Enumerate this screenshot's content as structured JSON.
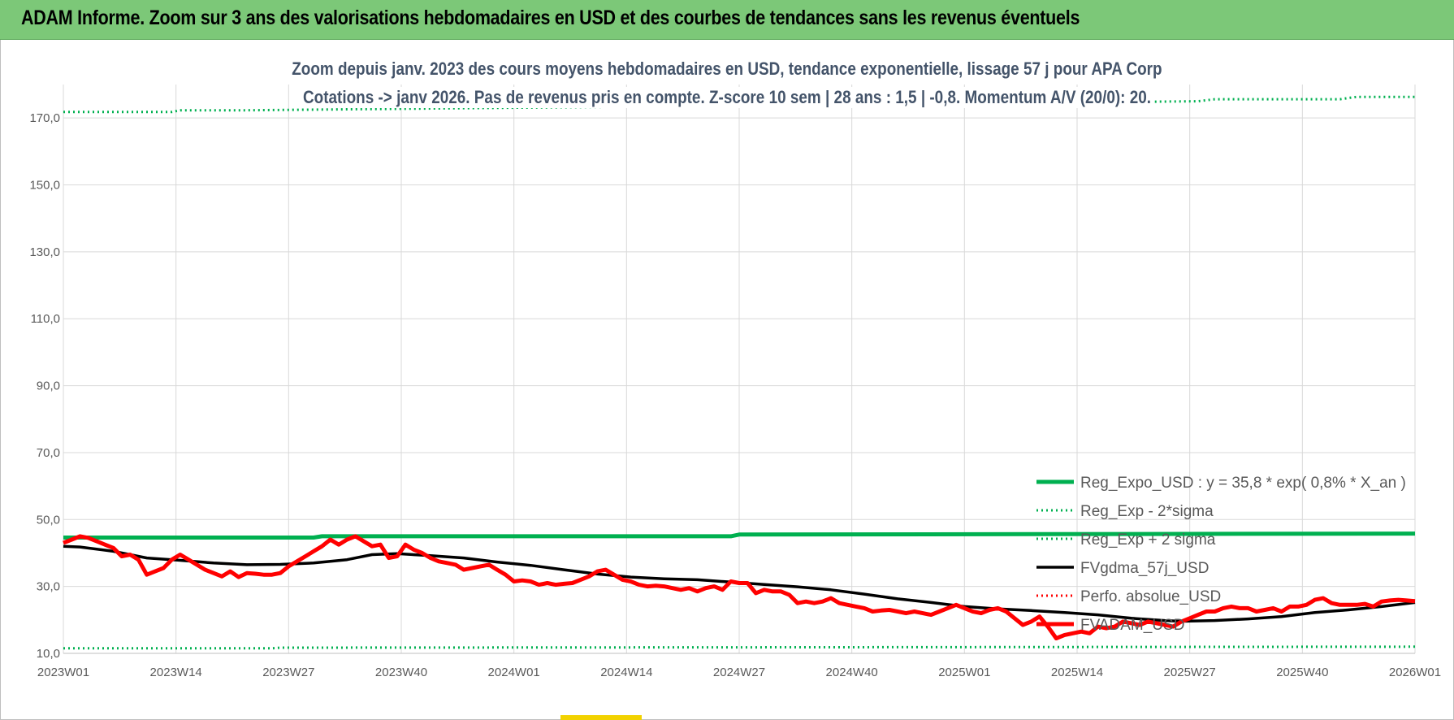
{
  "banner": {
    "title": "ADAM Informe. Zoom sur 3 ans des valorisations hebdomadaires en USD et des courbes de tendances sans les revenus éventuels"
  },
  "chart_data": {
    "type": "line",
    "title": "Zoom depuis janv. 2023 des cours moyens hebdomadaires en USD, tendance exponentielle, lissage 57 j pour APA Corp",
    "subtitle": "Cotations -> janv 2026. Pas de revenus pris en compte. Z-score 10 sem | 28 ans : 1,5 | -0,8. Momentum A/V (20/0): 20.",
    "ylim": [
      10,
      180
    ],
    "y_ticks": [
      "10,0",
      "30,0",
      "50,0",
      "70,0",
      "90,0",
      "110,0",
      "130,0",
      "150,0",
      "170,0"
    ],
    "x_ticks": [
      "2023W01",
      "2023W14",
      "2023W27",
      "2023W40",
      "2024W01",
      "2024W14",
      "2024W27",
      "2024W40",
      "2025W01",
      "2025W14",
      "2025W27",
      "2025W40",
      "2026W01"
    ],
    "grid": true,
    "legend_position": "right",
    "series": [
      {
        "name": "Reg_Expo_USD : y = 35,8 * exp( 0,8% *  X_an )",
        "color": "#00b050",
        "style": "solid-thick",
        "points": [
          [
            0,
            44.6
          ],
          [
            30,
            44.6
          ],
          [
            31,
            45.0
          ],
          [
            80,
            45.0
          ],
          [
            81,
            45.5
          ],
          [
            162,
            45.8
          ]
        ]
      },
      {
        "name": "Reg_Exp - 2*sigma",
        "color": "#00b050",
        "style": "dotted",
        "points": [
          [
            0,
            11.5
          ],
          [
            25,
            11.5
          ],
          [
            26,
            11.7
          ],
          [
            80,
            11.8
          ],
          [
            162,
            12.0
          ]
        ]
      },
      {
        "name": "Reg_Exp + 2 sigma",
        "color": "#00b050",
        "style": "dotted",
        "points": [
          [
            0,
            171.8
          ],
          [
            13,
            171.8
          ],
          [
            14,
            172.3
          ],
          [
            22,
            172.3
          ],
          [
            136,
            175.0
          ],
          [
            138,
            175.6
          ],
          [
            153,
            175.6
          ],
          [
            155,
            176.3
          ],
          [
            162,
            176.3
          ]
        ]
      },
      {
        "name": "FVgdma_57j_USD",
        "color": "#000000",
        "style": "solid",
        "points": [
          [
            0,
            42.0
          ],
          [
            2,
            41.8
          ],
          [
            6,
            40.5
          ],
          [
            10,
            38.5
          ],
          [
            14,
            37.8
          ],
          [
            18,
            37.0
          ],
          [
            22,
            36.5
          ],
          [
            26,
            36.6
          ],
          [
            30,
            37.0
          ],
          [
            34,
            38.0
          ],
          [
            37,
            39.5
          ],
          [
            40,
            39.8
          ],
          [
            44,
            39.2
          ],
          [
            48,
            38.5
          ],
          [
            52,
            37.3
          ],
          [
            56,
            36.3
          ],
          [
            60,
            35.0
          ],
          [
            64,
            33.7
          ],
          [
            68,
            32.8
          ],
          [
            72,
            32.3
          ],
          [
            76,
            32.0
          ],
          [
            80,
            31.3
          ],
          [
            84,
            30.6
          ],
          [
            88,
            29.9
          ],
          [
            92,
            29.0
          ],
          [
            96,
            27.7
          ],
          [
            100,
            26.3
          ],
          [
            104,
            25.2
          ],
          [
            108,
            24.0
          ],
          [
            112,
            23.3
          ],
          [
            116,
            22.8
          ],
          [
            120,
            22.2
          ],
          [
            124,
            21.5
          ],
          [
            128,
            20.5
          ],
          [
            132,
            19.8
          ],
          [
            134,
            19.6
          ],
          [
            138,
            19.8
          ],
          [
            142,
            20.3
          ],
          [
            146,
            21.0
          ],
          [
            150,
            22.2
          ],
          [
            154,
            23.0
          ],
          [
            158,
            24.0
          ],
          [
            162,
            25.2
          ]
        ]
      },
      {
        "name": "Perfo. absolue_USD",
        "color": "#ff0000",
        "style": "dotted",
        "points": []
      },
      {
        "name": "FVADAM_USD",
        "color": "#ff0000",
        "style": "solid-thick",
        "points": [
          [
            0,
            43.0
          ],
          [
            1,
            44.0
          ],
          [
            2,
            45.0
          ],
          [
            3,
            44.5
          ],
          [
            4,
            43.5
          ],
          [
            6,
            41.5
          ],
          [
            7,
            39.0
          ],
          [
            8,
            39.5
          ],
          [
            9,
            38.0
          ],
          [
            10,
            33.5
          ],
          [
            11,
            34.5
          ],
          [
            12,
            35.5
          ],
          [
            13,
            38.0
          ],
          [
            14,
            39.5
          ],
          [
            15,
            38.0
          ],
          [
            16,
            36.5
          ],
          [
            17,
            35.0
          ],
          [
            18,
            34.0
          ],
          [
            19,
            33.0
          ],
          [
            20,
            34.5
          ],
          [
            21,
            32.8
          ],
          [
            22,
            34.0
          ],
          [
            23,
            33.8
          ],
          [
            24,
            33.5
          ],
          [
            25,
            33.5
          ],
          [
            26,
            34.0
          ],
          [
            27,
            36.0
          ],
          [
            28,
            37.5
          ],
          [
            29,
            39.0
          ],
          [
            30,
            40.5
          ],
          [
            31,
            42.0
          ],
          [
            32,
            44.0
          ],
          [
            33,
            42.5
          ],
          [
            34,
            44.0
          ],
          [
            35,
            45.0
          ],
          [
            36,
            43.5
          ],
          [
            37,
            42.0
          ],
          [
            38,
            42.5
          ],
          [
            39,
            38.5
          ],
          [
            40,
            39.0
          ],
          [
            41,
            42.5
          ],
          [
            42,
            41.0
          ],
          [
            43,
            40.0
          ],
          [
            44,
            38.5
          ],
          [
            45,
            37.5
          ],
          [
            46,
            37.0
          ],
          [
            47,
            36.5
          ],
          [
            48,
            35.0
          ],
          [
            49,
            35.5
          ],
          [
            50,
            36.0
          ],
          [
            51,
            36.5
          ],
          [
            52,
            35.0
          ],
          [
            53,
            33.5
          ],
          [
            54,
            31.5
          ],
          [
            55,
            31.8
          ],
          [
            56,
            31.5
          ],
          [
            57,
            30.5
          ],
          [
            58,
            31.0
          ],
          [
            59,
            30.5
          ],
          [
            60,
            30.8
          ],
          [
            61,
            31.0
          ],
          [
            62,
            32.0
          ],
          [
            63,
            33.0
          ],
          [
            64,
            34.5
          ],
          [
            65,
            35.0
          ],
          [
            66,
            33.5
          ],
          [
            67,
            32.0
          ],
          [
            68,
            31.5
          ],
          [
            69,
            30.5
          ],
          [
            70,
            30.0
          ],
          [
            71,
            30.2
          ],
          [
            72,
            30.0
          ],
          [
            73,
            29.5
          ],
          [
            74,
            29.0
          ],
          [
            75,
            29.5
          ],
          [
            76,
            28.5
          ],
          [
            77,
            29.5
          ],
          [
            78,
            30.0
          ],
          [
            79,
            29.0
          ],
          [
            80,
            31.5
          ],
          [
            81,
            31.0
          ],
          [
            82,
            31.0
          ],
          [
            83,
            28.0
          ],
          [
            84,
            29.0
          ],
          [
            85,
            28.5
          ],
          [
            86,
            28.5
          ],
          [
            87,
            27.5
          ],
          [
            88,
            25.0
          ],
          [
            89,
            25.5
          ],
          [
            90,
            25.0
          ],
          [
            91,
            25.5
          ],
          [
            92,
            26.5
          ],
          [
            93,
            25.0
          ],
          [
            94,
            24.5
          ],
          [
            95,
            24.0
          ],
          [
            96,
            23.5
          ],
          [
            97,
            22.5
          ],
          [
            98,
            22.8
          ],
          [
            99,
            23.0
          ],
          [
            100,
            22.5
          ],
          [
            101,
            22.0
          ],
          [
            102,
            22.5
          ],
          [
            103,
            22.0
          ],
          [
            104,
            21.5
          ],
          [
            105,
            22.5
          ],
          [
            106,
            23.5
          ],
          [
            107,
            24.5
          ],
          [
            108,
            23.5
          ],
          [
            109,
            22.5
          ],
          [
            110,
            22.0
          ],
          [
            111,
            23.0
          ],
          [
            112,
            23.5
          ],
          [
            113,
            22.5
          ],
          [
            114,
            20.5
          ],
          [
            115,
            18.5
          ],
          [
            116,
            19.5
          ],
          [
            117,
            21.0
          ],
          [
            118,
            18.0
          ],
          [
            119,
            14.5
          ],
          [
            120,
            15.5
          ],
          [
            121,
            16.0
          ],
          [
            122,
            16.5
          ],
          [
            123,
            16.0
          ],
          [
            124,
            18.0
          ],
          [
            125,
            17.5
          ],
          [
            126,
            18.0
          ],
          [
            127,
            19.5
          ],
          [
            128,
            19.0
          ],
          [
            129,
            18.5
          ],
          [
            130,
            19.5
          ],
          [
            131,
            19.0
          ],
          [
            132,
            18.5
          ],
          [
            133,
            18.0
          ],
          [
            134,
            19.5
          ],
          [
            135,
            20.5
          ],
          [
            136,
            21.5
          ],
          [
            137,
            22.5
          ],
          [
            138,
            22.5
          ],
          [
            139,
            23.5
          ],
          [
            140,
            24.0
          ],
          [
            141,
            23.5
          ],
          [
            142,
            23.5
          ],
          [
            143,
            22.5
          ],
          [
            144,
            23.0
          ],
          [
            145,
            23.5
          ],
          [
            146,
            22.5
          ],
          [
            147,
            24.0
          ],
          [
            148,
            24.0
          ],
          [
            149,
            24.5
          ],
          [
            150,
            26.0
          ],
          [
            151,
            26.5
          ],
          [
            152,
            25.0
          ],
          [
            153,
            24.5
          ],
          [
            154,
            24.5
          ],
          [
            155,
            24.5
          ],
          [
            156,
            24.8
          ],
          [
            157,
            24.0
          ],
          [
            158,
            25.5
          ],
          [
            159,
            25.8
          ],
          [
            160,
            26.0
          ],
          [
            161,
            25.8
          ],
          [
            162,
            25.6
          ]
        ]
      }
    ]
  }
}
